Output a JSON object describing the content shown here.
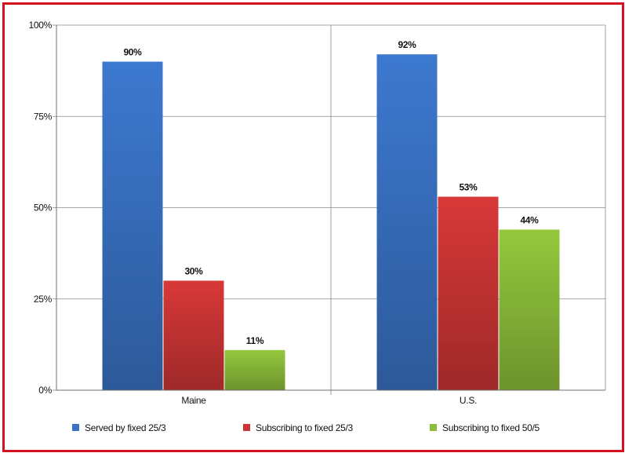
{
  "chart_data": {
    "type": "bar",
    "title": "",
    "xlabel": "",
    "ylabel": "",
    "categories": [
      "Maine",
      "U.S."
    ],
    "series": [
      {
        "name": "Served by fixed 25/3",
        "values": [
          90,
          92
        ],
        "color": "#3a72c4",
        "labels": [
          "90%",
          "92%"
        ]
      },
      {
        "name": "Subscribing to fixed 25/3",
        "values": [
          30,
          53
        ],
        "color": "#cc3535",
        "labels": [
          "30%",
          "53%"
        ]
      },
      {
        "name": "Subscribing to fixed 50/5",
        "values": [
          11,
          44
        ],
        "color": "#8cbd3a",
        "labels": [
          "11%",
          "44%"
        ]
      }
    ],
    "ylim": [
      0,
      100
    ],
    "yticks": [
      0,
      25,
      50,
      75,
      100
    ],
    "ytick_labels": [
      "0%",
      "25%",
      "50%",
      "75%",
      "100%"
    ],
    "grid": true,
    "legend": "bottom",
    "frame_color": "#d4121f"
  }
}
